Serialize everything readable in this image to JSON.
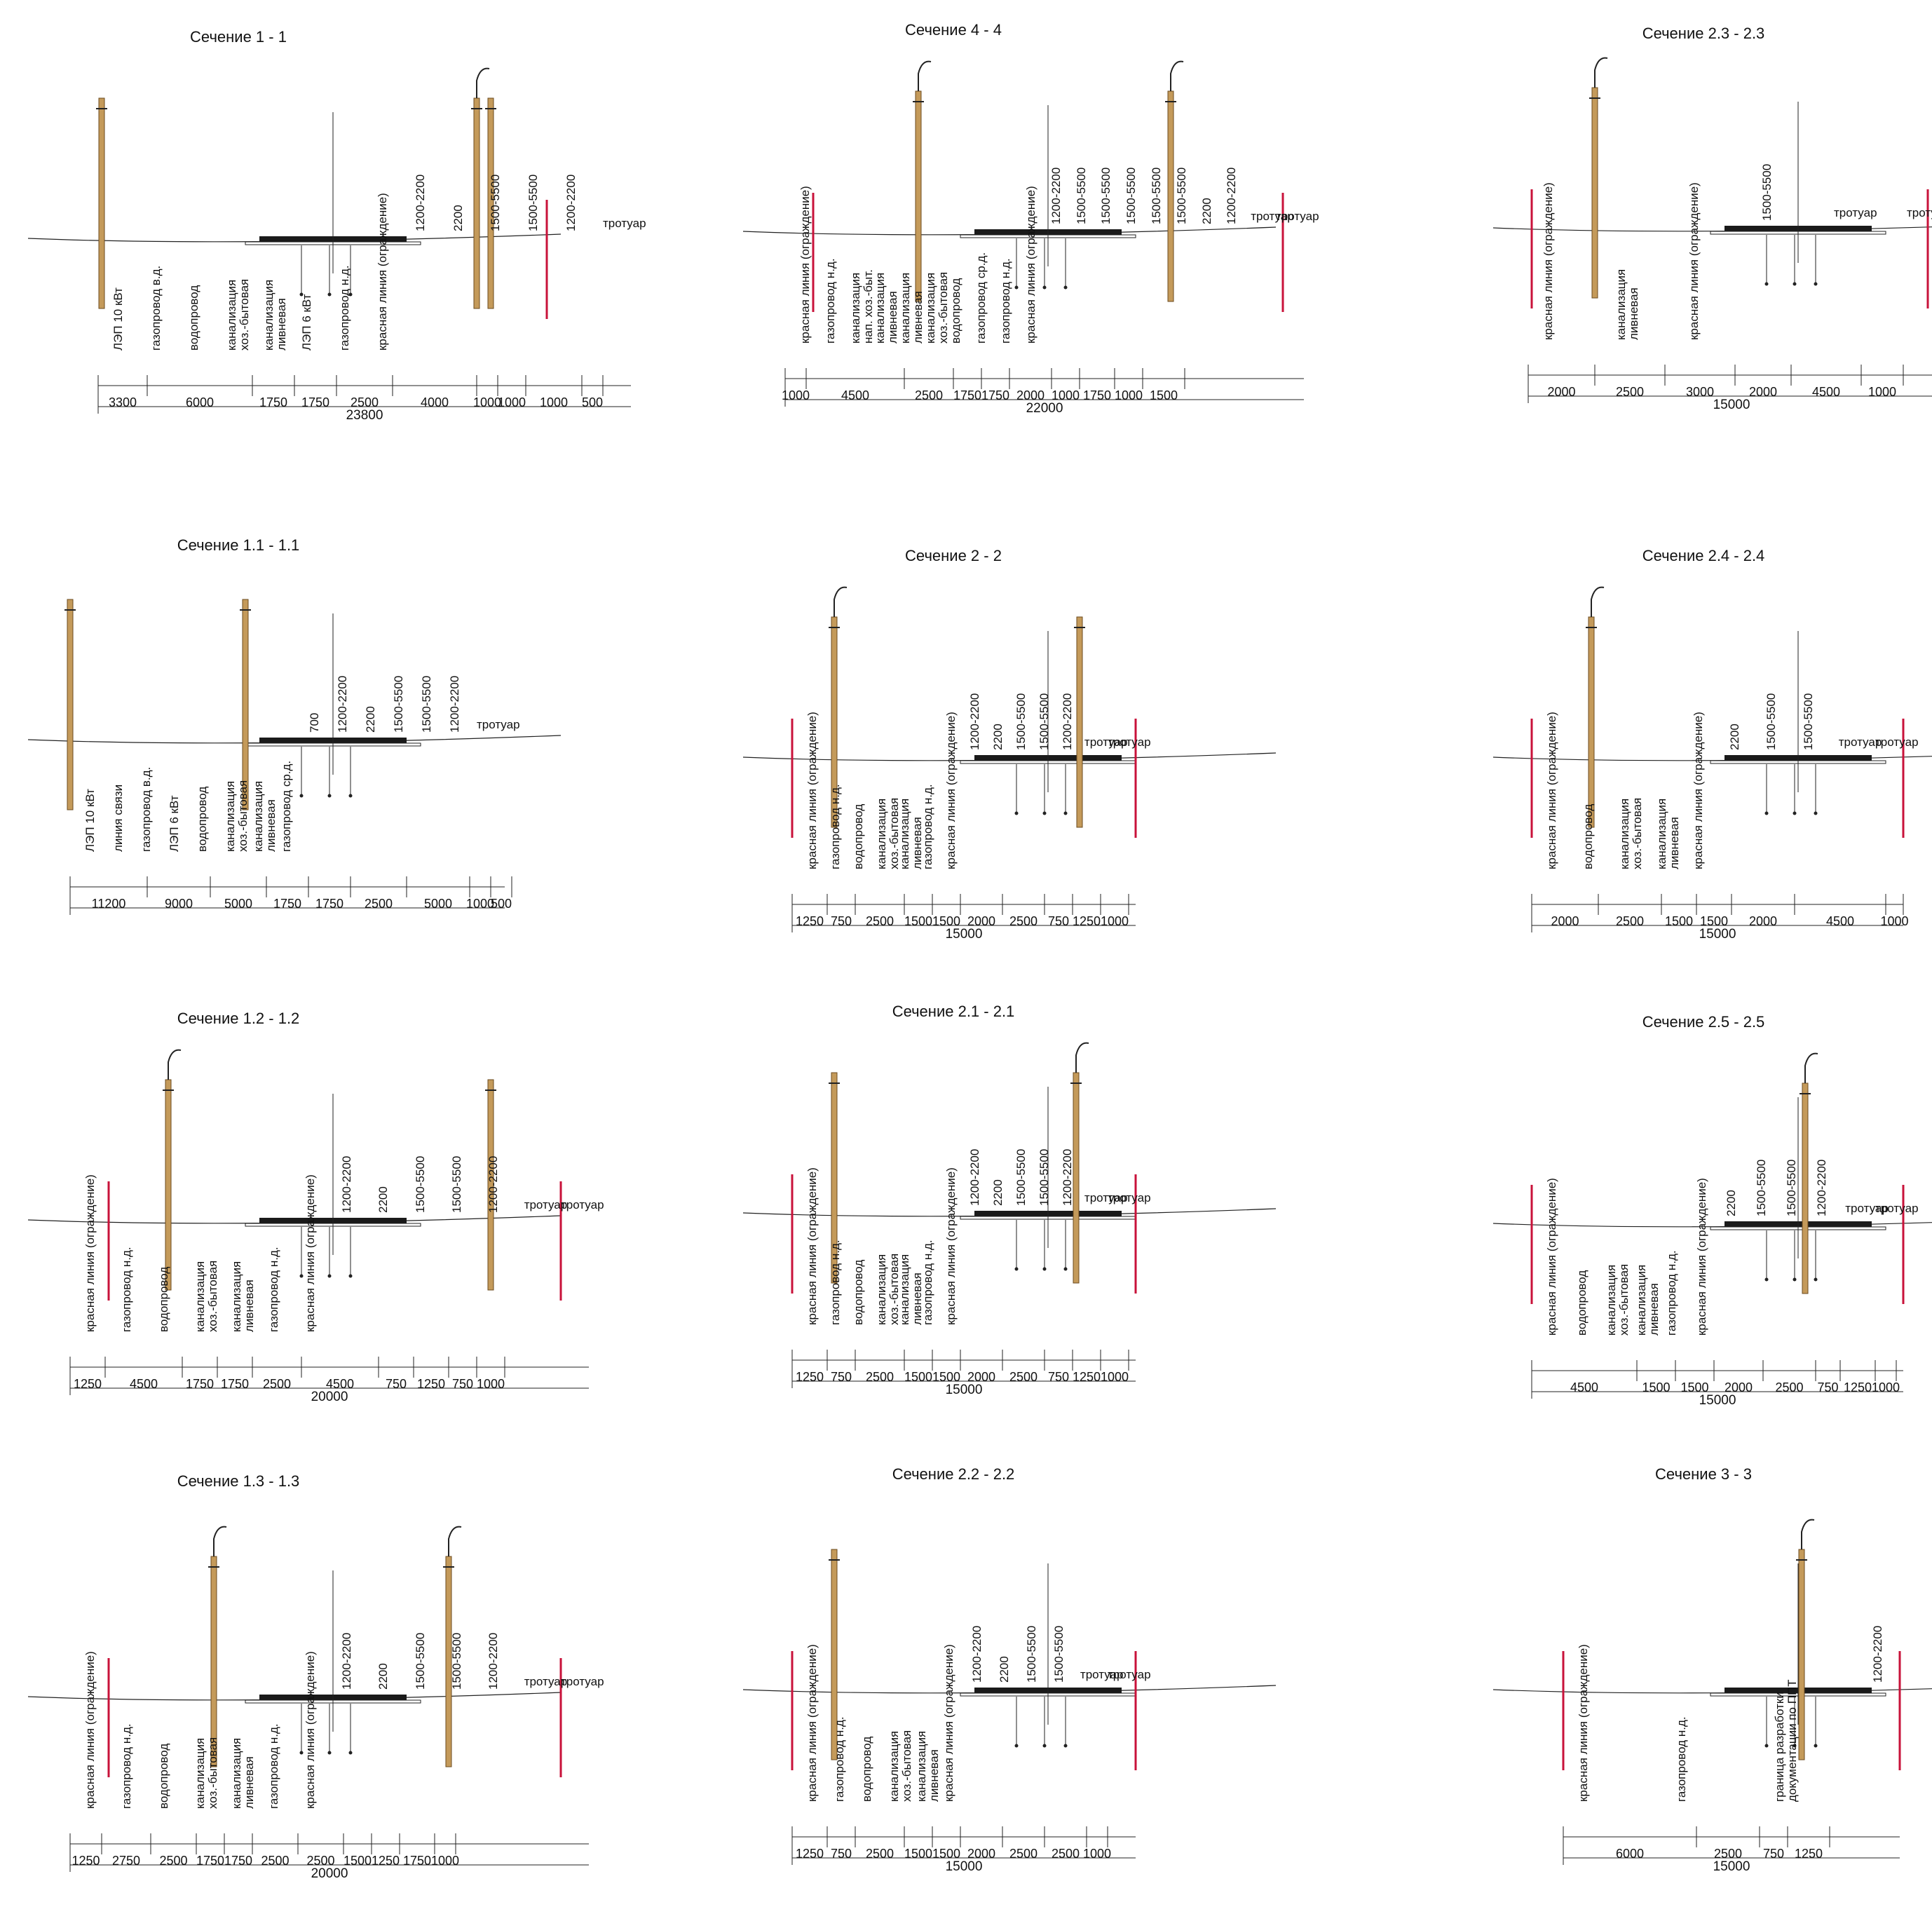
{
  "colors": {
    "red_line": "#c8123a",
    "pole": "#c49a5a",
    "road": "#1a1a1a",
    "ink": "#222222"
  },
  "sections": [
    {
      "title": "Сечение 1 - 1",
      "labels": [
        "ЛЭП 10 кВт",
        "газопровод в.д.",
        "водопровод",
        "канализация\nхоз.-бытовая",
        "канализация\nливневая",
        "ЛЭП 6 кВт",
        "газопровод н.д.",
        "красная линия (ограждение)",
        "1200-2200",
        "2200",
        "1500-5500",
        "1500-5500",
        "1200-2200",
        "тротуар"
      ],
      "dims": [
        "3300",
        "6000",
        "1750",
        "1750",
        "2500",
        "4000",
        "1000",
        "1000",
        "1000",
        "500"
      ],
      "total": "23800"
    },
    {
      "title": "Сечение 4 - 4",
      "labels": [
        "красная линия (ограждение)",
        "газопровод н.д.",
        "канализация\nнап. хоз.-быт.",
        "канализация\nливневая",
        "канализация\nливневая",
        "канализация\nхоз.-бытовая",
        "водопровод",
        "газопровод ср.д.",
        "газопровод н.д.",
        "красная линия (ограждение)",
        "1200-2200",
        "1500-5500",
        "1500-5500",
        "1500-5500",
        "1500-5500",
        "1500-5500",
        "2200",
        "1200-2200",
        "тротуар",
        "тротуар"
      ],
      "dims": [
        "1000",
        "4500",
        "2500",
        "1750",
        "1750",
        "2000",
        "1000",
        "1750",
        "1000",
        "1500"
      ],
      "total": "22000"
    },
    {
      "title": "Сечение 2.3 - 2.3",
      "labels": [
        "красная линия (ограждение)",
        "канализация\nливневая",
        "красная линия (ограждение)",
        "1500-5500",
        "тротуар",
        "тротуар"
      ],
      "dims": [
        "2000",
        "2500",
        "3000",
        "2000",
        "4500",
        "1000"
      ],
      "total": "15000"
    },
    {
      "title": "Сечение 1.1 - 1.1",
      "labels": [
        "ЛЭП 10 кВт",
        "линия связи",
        "газопровод в.д.",
        "ЛЭП 6 кВт",
        "водопровод",
        "канализация\nхоз.-бытовая",
        "канализация\nливневая",
        "газопровод ср.д.",
        "700",
        "1200-2200",
        "2200",
        "1500-5500",
        "1500-5500",
        "1200-2200",
        "тротуар"
      ],
      "dims": [
        "11200",
        "9000",
        "5000",
        "1750",
        "1750",
        "2500",
        "5000",
        "1000",
        "500"
      ],
      "total": ""
    },
    {
      "title": "Сечение 2 - 2",
      "labels": [
        "красная линия (ограждение)",
        "газопровод н.д.",
        "водопровод",
        "канализация\nхоз.-бытовая",
        "канализация\nливневая",
        "газопровод н.д.",
        "красная линия (ограждение)",
        "1200-2200",
        "2200",
        "1500-5500",
        "1500-5500",
        "1200-2200",
        "тротуар",
        "тротуар"
      ],
      "dims": [
        "1250",
        "750",
        "2500",
        "1500",
        "1500",
        "2000",
        "2500",
        "750",
        "1250",
        "1000"
      ],
      "total": "15000"
    },
    {
      "title": "Сечение 2.4 - 2.4",
      "labels": [
        "красная линия (ограждение)",
        "водопровод",
        "канализация\nхоз.-бытовая",
        "канализация\nливневая",
        "красная линия (ограждение)",
        "2200",
        "1500-5500",
        "1500-5500",
        "тротуар",
        "тротуар"
      ],
      "dims": [
        "2000",
        "2500",
        "1500",
        "1500",
        "2000",
        "4500",
        "1000"
      ],
      "total": "15000"
    },
    {
      "title": "Сечение 1.2 - 1.2",
      "labels": [
        "красная линия (ограждение)",
        "газопровод н.д.",
        "водопровод",
        "канализация\nхоз.-бытовая",
        "канализация\nливневая",
        "газопровод н.д.",
        "красная линия (ограждение)",
        "1200-2200",
        "2200",
        "1500-5500",
        "1500-5500",
        "1200-2200",
        "тротуар",
        "тротуар"
      ],
      "dims": [
        "1250",
        "4500",
        "1750",
        "1750",
        "2500",
        "4500",
        "750",
        "1250",
        "750",
        "1000"
      ],
      "total": "20000"
    },
    {
      "title": "Сечение 2.1 - 2.1",
      "labels": [
        "красная линия (ограждение)",
        "газопровод н.д.",
        "водопровод",
        "канализация\nхоз.-бытовая",
        "канализация\nливневая",
        "газопровод н.д.",
        "красная линия (ограждение)",
        "1200-2200",
        "2200",
        "1500-5500",
        "1500-5500",
        "1200-2200",
        "тротуар",
        "тротуар"
      ],
      "dims": [
        "1250",
        "750",
        "2500",
        "1500",
        "1500",
        "2000",
        "2500",
        "750",
        "1250",
        "1000"
      ],
      "total": "15000"
    },
    {
      "title": "Сечение 2.5 - 2.5",
      "labels": [
        "красная линия (ограждение)",
        "водопровод",
        "канализация\nхоз.-бытовая",
        "канализация\nливневая",
        "газопровод н.д.",
        "красная линия (ограждение)",
        "2200",
        "1500-5500",
        "1500-5500",
        "1200-2200",
        "тротуар",
        "тротуар"
      ],
      "dims": [
        "4500",
        "1500",
        "1500",
        "2000",
        "2500",
        "750",
        "1250",
        "1000"
      ],
      "total": "15000"
    },
    {
      "title": "Сечение 1.3 - 1.3",
      "labels": [
        "красная линия (ограждение)",
        "газопровод н.д.",
        "водопровод",
        "канализация\nхоз.-бытовая",
        "канализация\nливневая",
        "газопровод н.д.",
        "красная линия (ограждение)",
        "1200-2200",
        "2200",
        "1500-5500",
        "1500-5500",
        "1200-2200",
        "тротуар",
        "тротуар"
      ],
      "dims": [
        "1250",
        "2750",
        "2500",
        "1750",
        "1750",
        "2500",
        "2500",
        "1500",
        "1250",
        "1750",
        "1000"
      ],
      "total": "20000"
    },
    {
      "title": "Сечение 2.2 - 2.2",
      "labels": [
        "красная линия (ограждение)",
        "газопровод н.д.",
        "водопровод",
        "канализация\nхоз.-бытовая",
        "канализация\nливневая",
        "красная линия (ограждение)",
        "1200-2200",
        "2200",
        "1500-5500",
        "1500-5500",
        "тротуар",
        "тротуар"
      ],
      "dims": [
        "1250",
        "750",
        "2500",
        "1500",
        "1500",
        "2000",
        "2500",
        "2500",
        "1000"
      ],
      "total": "15000"
    },
    {
      "title": "Сечение 3 - 3",
      "labels": [
        "красная линия (ограждение)",
        "газопровод н.д.",
        "граница разработки\nдокументации по ППТ",
        "1200-2200"
      ],
      "dims": [
        "6000",
        "2500",
        "750",
        "1250"
      ],
      "total": "15000"
    }
  ]
}
